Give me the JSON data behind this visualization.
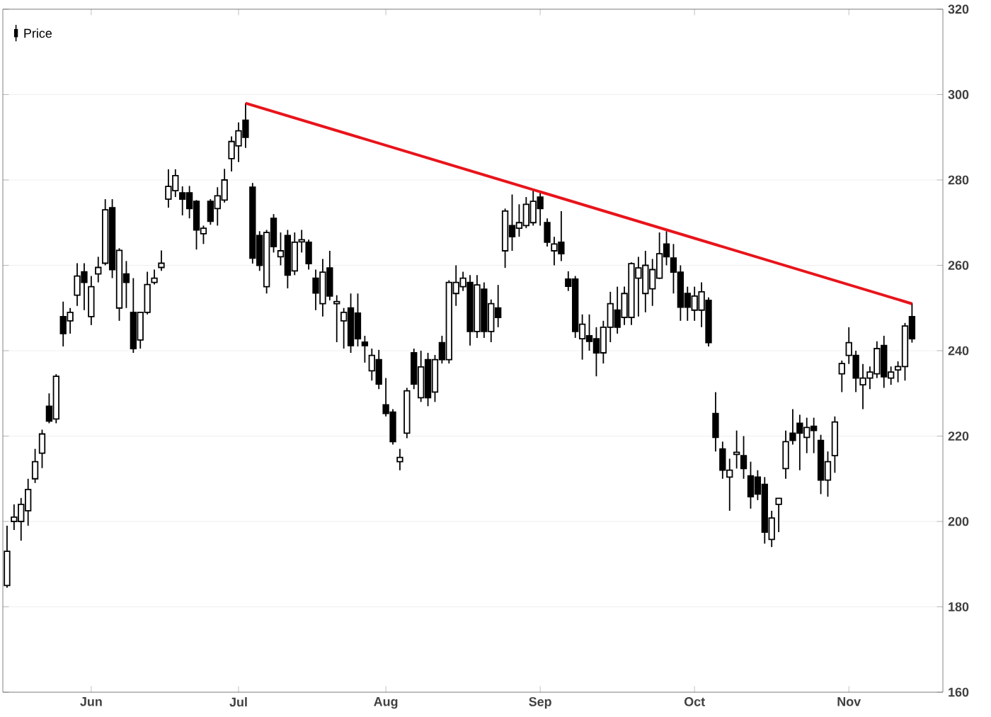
{
  "chart_data": {
    "type": "candlestick",
    "categories": [
      null,
      null,
      null,
      null,
      null,
      null,
      null,
      null,
      null,
      null,
      null,
      null,
      "Jun",
      null,
      null,
      null,
      null,
      null,
      null,
      null,
      null,
      null,
      null,
      null,
      null,
      null,
      null,
      null,
      null,
      null,
      null,
      null,
      null,
      "Jul",
      null,
      null,
      null,
      null,
      null,
      null,
      null,
      null,
      null,
      null,
      null,
      null,
      null,
      null,
      null,
      null,
      null,
      null,
      null,
      null,
      "Aug",
      null,
      null,
      null,
      null,
      null,
      null,
      null,
      null,
      null,
      null,
      null,
      null,
      null,
      null,
      null,
      null,
      null,
      null,
      null,
      null,
      null,
      "Sep",
      null,
      null,
      null,
      null,
      null,
      null,
      null,
      null,
      null,
      null,
      null,
      null,
      null,
      null,
      null,
      null,
      null,
      null,
      null,
      null,
      null,
      "Oct",
      null,
      null,
      null,
      null,
      null,
      null,
      null,
      null,
      null,
      null,
      null,
      null,
      null,
      null,
      null,
      null,
      null,
      null,
      null,
      null,
      null,
      "Nov",
      null,
      null,
      null,
      null,
      null,
      null,
      null,
      null,
      null
    ],
    "series": [
      {
        "name": "Price",
        "color": "#000000",
        "ohlc": [
          [
            185,
            199,
            184.5,
            193
          ],
          [
            200,
            204,
            198,
            201
          ],
          [
            200,
            205.5,
            195.5,
            204
          ],
          [
            202.5,
            210,
            199,
            207.5
          ],
          [
            210,
            217,
            209,
            214
          ],
          [
            216,
            221.5,
            212.5,
            220.5
          ],
          [
            227,
            230,
            223,
            223.5
          ],
          [
            224,
            234.5,
            223,
            234
          ],
          [
            248,
            251.5,
            241,
            244
          ],
          [
            247,
            250,
            244,
            249
          ],
          [
            253,
            260.5,
            250.5,
            257.5
          ],
          [
            258.5,
            260.5,
            249.5,
            256
          ],
          [
            248,
            257.5,
            246,
            255
          ],
          [
            258,
            262,
            256,
            259.5
          ],
          [
            260.5,
            275.5,
            260,
            273
          ],
          [
            273.5,
            275.5,
            257,
            259
          ],
          [
            250,
            264,
            247,
            263.5
          ],
          [
            258,
            261,
            250,
            256
          ],
          [
            249,
            257,
            239.5,
            240.5
          ],
          [
            242.5,
            249,
            240.5,
            249
          ],
          [
            249,
            258.5,
            248.5,
            255.5
          ],
          [
            256,
            259,
            255.5,
            257
          ],
          [
            259.5,
            263.5,
            258.7,
            260.5
          ],
          [
            275.5,
            282.5,
            273.5,
            278.5
          ],
          [
            277.5,
            282.5,
            276,
            281
          ],
          [
            277,
            278.5,
            271.7,
            275.5
          ],
          [
            277,
            278.6,
            271,
            273.3
          ],
          [
            275,
            275.3,
            263.7,
            268.3
          ],
          [
            267.4,
            269.3,
            265,
            268.7
          ],
          [
            275,
            275.5,
            269.5,
            270.3
          ],
          [
            273.3,
            278.3,
            269.3,
            276.3
          ],
          [
            275.3,
            282.6,
            274.7,
            280
          ],
          [
            285,
            290.2,
            282,
            289
          ],
          [
            288,
            293.5,
            284.2,
            291.5
          ],
          [
            294,
            298,
            287.5,
            290
          ],
          [
            278.3,
            279.3,
            260.4,
            261.7
          ],
          [
            267,
            268,
            258.7,
            260
          ],
          [
            255,
            268.3,
            253.4,
            267.7
          ],
          [
            271,
            272,
            263,
            264.4
          ],
          [
            262,
            267.7,
            260,
            263.4
          ],
          [
            267,
            268.3,
            254.6,
            257.7
          ],
          [
            258.7,
            267.7,
            257.7,
            265.4
          ],
          [
            265.5,
            268.3,
            263,
            266
          ],
          [
            265.4,
            266,
            259,
            260.4
          ],
          [
            257,
            259,
            249.5,
            253.5
          ],
          [
            251,
            261.5,
            248,
            258.4
          ],
          [
            259.4,
            263.4,
            251.8,
            252.8
          ],
          [
            251,
            253,
            242,
            251.5
          ],
          [
            247,
            250,
            240.5,
            249
          ],
          [
            250,
            253.4,
            239.5,
            241.2
          ],
          [
            248.8,
            253.4,
            241,
            242.8
          ],
          [
            242,
            243.5,
            237.2,
            241.2
          ],
          [
            235.3,
            240.5,
            233,
            238.9
          ],
          [
            237.9,
            240.2,
            231,
            232.2
          ],
          [
            227.3,
            233.6,
            224.6,
            225.3
          ],
          [
            225.6,
            226.3,
            218,
            218.7
          ],
          [
            214,
            217,
            212,
            215
          ],
          [
            220.7,
            231.3,
            219.5,
            230.6
          ],
          [
            239.5,
            240.5,
            231,
            232.2
          ],
          [
            229,
            240,
            228,
            236.2
          ],
          [
            237.9,
            239.5,
            227,
            229
          ],
          [
            230.3,
            239,
            228,
            237.9
          ],
          [
            241.9,
            243.5,
            237,
            237.9
          ],
          [
            237.9,
            256.5,
            237,
            256
          ],
          [
            253.4,
            260,
            250.5,
            256
          ],
          [
            255,
            258.5,
            254,
            257
          ],
          [
            256,
            257.7,
            241.2,
            244.5
          ],
          [
            244.5,
            257.7,
            243,
            255.4
          ],
          [
            254.4,
            256,
            243,
            244.5
          ],
          [
            244.5,
            252,
            242,
            251
          ],
          [
            250,
            255.4,
            245.5,
            247.8
          ],
          [
            263.4,
            273.3,
            259.4,
            272.7
          ],
          [
            269.3,
            276.6,
            263.4,
            266.7
          ],
          [
            268.7,
            274.3,
            266.7,
            270
          ],
          [
            269.3,
            276,
            268.7,
            274.3
          ],
          [
            270,
            278,
            269.3,
            275
          ],
          [
            276,
            277,
            269.3,
            273.3
          ],
          [
            270,
            271,
            264.4,
            265.4
          ],
          [
            263.4,
            266.7,
            260,
            265
          ],
          [
            265.4,
            272.7,
            261,
            262.7
          ],
          [
            256.8,
            258.6,
            254,
            255.1
          ],
          [
            256.8,
            257.5,
            243,
            244.5
          ],
          [
            242.8,
            248.5,
            237.9,
            246.2
          ],
          [
            243.5,
            248.5,
            240,
            242.2
          ],
          [
            242.8,
            245.5,
            234,
            239.5
          ],
          [
            239.5,
            247,
            237,
            245.5
          ],
          [
            245.5,
            253.8,
            242,
            251
          ],
          [
            249.5,
            255,
            244,
            245.5
          ],
          [
            247.8,
            255,
            246,
            253.4
          ],
          [
            247.8,
            260.7,
            246,
            260.4
          ],
          [
            257,
            262,
            248,
            259.4
          ],
          [
            253.4,
            263.4,
            249,
            260
          ],
          [
            254.5,
            261.5,
            250.5,
            259
          ],
          [
            257,
            267.7,
            256.8,
            262.7
          ],
          [
            265,
            268,
            260,
            262
          ],
          [
            261.7,
            265,
            253.4,
            258.4
          ],
          [
            258.4,
            260,
            247,
            250.2
          ],
          [
            253.4,
            255,
            247,
            250.2
          ],
          [
            249.5,
            255,
            247,
            252.8
          ],
          [
            249.5,
            256,
            245.5,
            253.8
          ],
          [
            251.8,
            252.5,
            241,
            241.9
          ],
          [
            225.3,
            230.3,
            216.4,
            219.7
          ],
          [
            217,
            218.7,
            210,
            212
          ],
          [
            210.4,
            214.7,
            202.5,
            212
          ],
          [
            215.7,
            221.3,
            212.4,
            216.2
          ],
          [
            215.4,
            220,
            210,
            212.4
          ],
          [
            210.7,
            214,
            203,
            205.8
          ],
          [
            210.4,
            212,
            205,
            206.4
          ],
          [
            208.7,
            210.4,
            194.8,
            197.5
          ],
          [
            195.8,
            202.5,
            194,
            200.8
          ],
          [
            204,
            205.4,
            197.5,
            205.4
          ],
          [
            212.4,
            221.3,
            210,
            218.7
          ],
          [
            220.7,
            226.3,
            218,
            219
          ],
          [
            223,
            225,
            212,
            220.7
          ],
          [
            219.7,
            224.3,
            216,
            222
          ],
          [
            222.3,
            224.3,
            216,
            221.3
          ],
          [
            219,
            220.3,
            206.4,
            209.7
          ],
          [
            209.7,
            216.4,
            205.8,
            214
          ],
          [
            215.4,
            224.6,
            211.4,
            223.3
          ],
          [
            234.6,
            237.7,
            230.3,
            237
          ],
          [
            238.9,
            245.5,
            236.9,
            241.9
          ],
          [
            238.9,
            240,
            230.3,
            233.6
          ],
          [
            232,
            236.9,
            226.3,
            233.6
          ],
          [
            233.6,
            236.3,
            231,
            235
          ],
          [
            234.6,
            242.2,
            233.6,
            240.5
          ],
          [
            241.2,
            243.5,
            231.3,
            233.9
          ],
          [
            233.6,
            236.3,
            232,
            235
          ],
          [
            235.5,
            237.5,
            232.6,
            236.3
          ],
          [
            236.3,
            246.5,
            233,
            245.8
          ],
          [
            248,
            251.2,
            241.9,
            242.8
          ]
        ]
      },
      {
        "type": "line",
        "color": "#e8141b",
        "values": [
          null,
          null,
          null,
          null,
          null,
          null,
          null,
          null,
          null,
          null,
          null,
          null,
          null,
          null,
          null,
          null,
          null,
          null,
          null,
          null,
          null,
          null,
          null,
          null,
          null,
          null,
          null,
          null,
          null,
          null,
          null,
          null,
          null,
          null,
          298,
          null,
          null,
          null,
          null,
          null,
          null,
          null,
          null,
          null,
          null,
          null,
          null,
          null,
          null,
          null,
          null,
          null,
          null,
          null,
          null,
          null,
          null,
          null,
          null,
          null,
          null,
          null,
          null,
          null,
          null,
          null,
          null,
          null,
          null,
          null,
          null,
          null,
          null,
          null,
          null,
          null,
          null,
          null,
          null,
          null,
          null,
          null,
          null,
          null,
          null,
          null,
          null,
          null,
          null,
          null,
          null,
          null,
          null,
          null,
          null,
          null,
          null,
          null,
          null,
          null,
          null,
          null,
          null,
          null,
          null,
          null,
          null,
          null,
          null,
          null,
          null,
          null,
          null,
          null,
          null,
          null,
          null,
          null,
          null,
          null,
          null,
          null,
          null,
          null,
          null,
          null,
          null,
          null,
          null,
          251
        ]
      }
    ],
    "ylim": [
      160,
      320
    ],
    "yticks": [
      160,
      180,
      200,
      220,
      240,
      260,
      280,
      300,
      320
    ],
    "grid": "y",
    "legend": "top left"
  }
}
